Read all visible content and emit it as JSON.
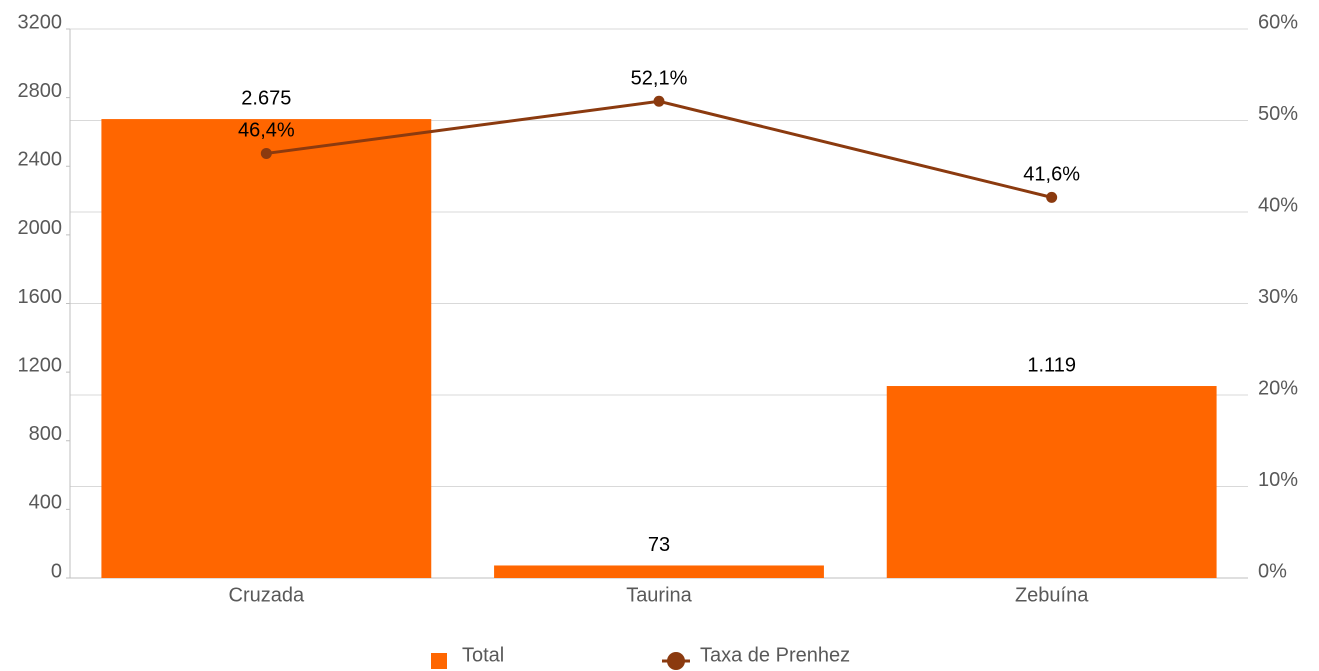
{
  "chart_data": {
    "type": "bar",
    "categories": [
      "Cruzada",
      "Taurina",
      "Zebuína"
    ],
    "series": [
      {
        "name": "Total",
        "type": "bar",
        "color": "#ff6600",
        "values": [
          2675,
          73,
          1119
        ],
        "value_labels": [
          "2.675",
          "73",
          "1.119"
        ]
      },
      {
        "name": "Taxa de Prenhez",
        "type": "line",
        "axis": "y2",
        "color": "#8b3a0f",
        "values": [
          46.4,
          52.1,
          41.6
        ],
        "value_labels": [
          "46,4%",
          "52,1%",
          "41,6%"
        ]
      }
    ],
    "ylim": [
      0,
      3200
    ],
    "yticks": [
      0,
      400,
      800,
      1200,
      1600,
      2000,
      2400,
      2800,
      3200
    ],
    "y2lim": [
      0,
      60
    ],
    "y2ticks": [
      {
        "value": 0,
        "label": "0%"
      },
      {
        "value": 10,
        "label": "10%"
      },
      {
        "value": 20,
        "label": "20%"
      },
      {
        "value": 30,
        "label": "30%"
      },
      {
        "value": 40,
        "label": "40%"
      },
      {
        "value": 50,
        "label": "50%"
      },
      {
        "value": 60,
        "label": "60%"
      }
    ],
    "grid": true,
    "legend": "bottom"
  }
}
